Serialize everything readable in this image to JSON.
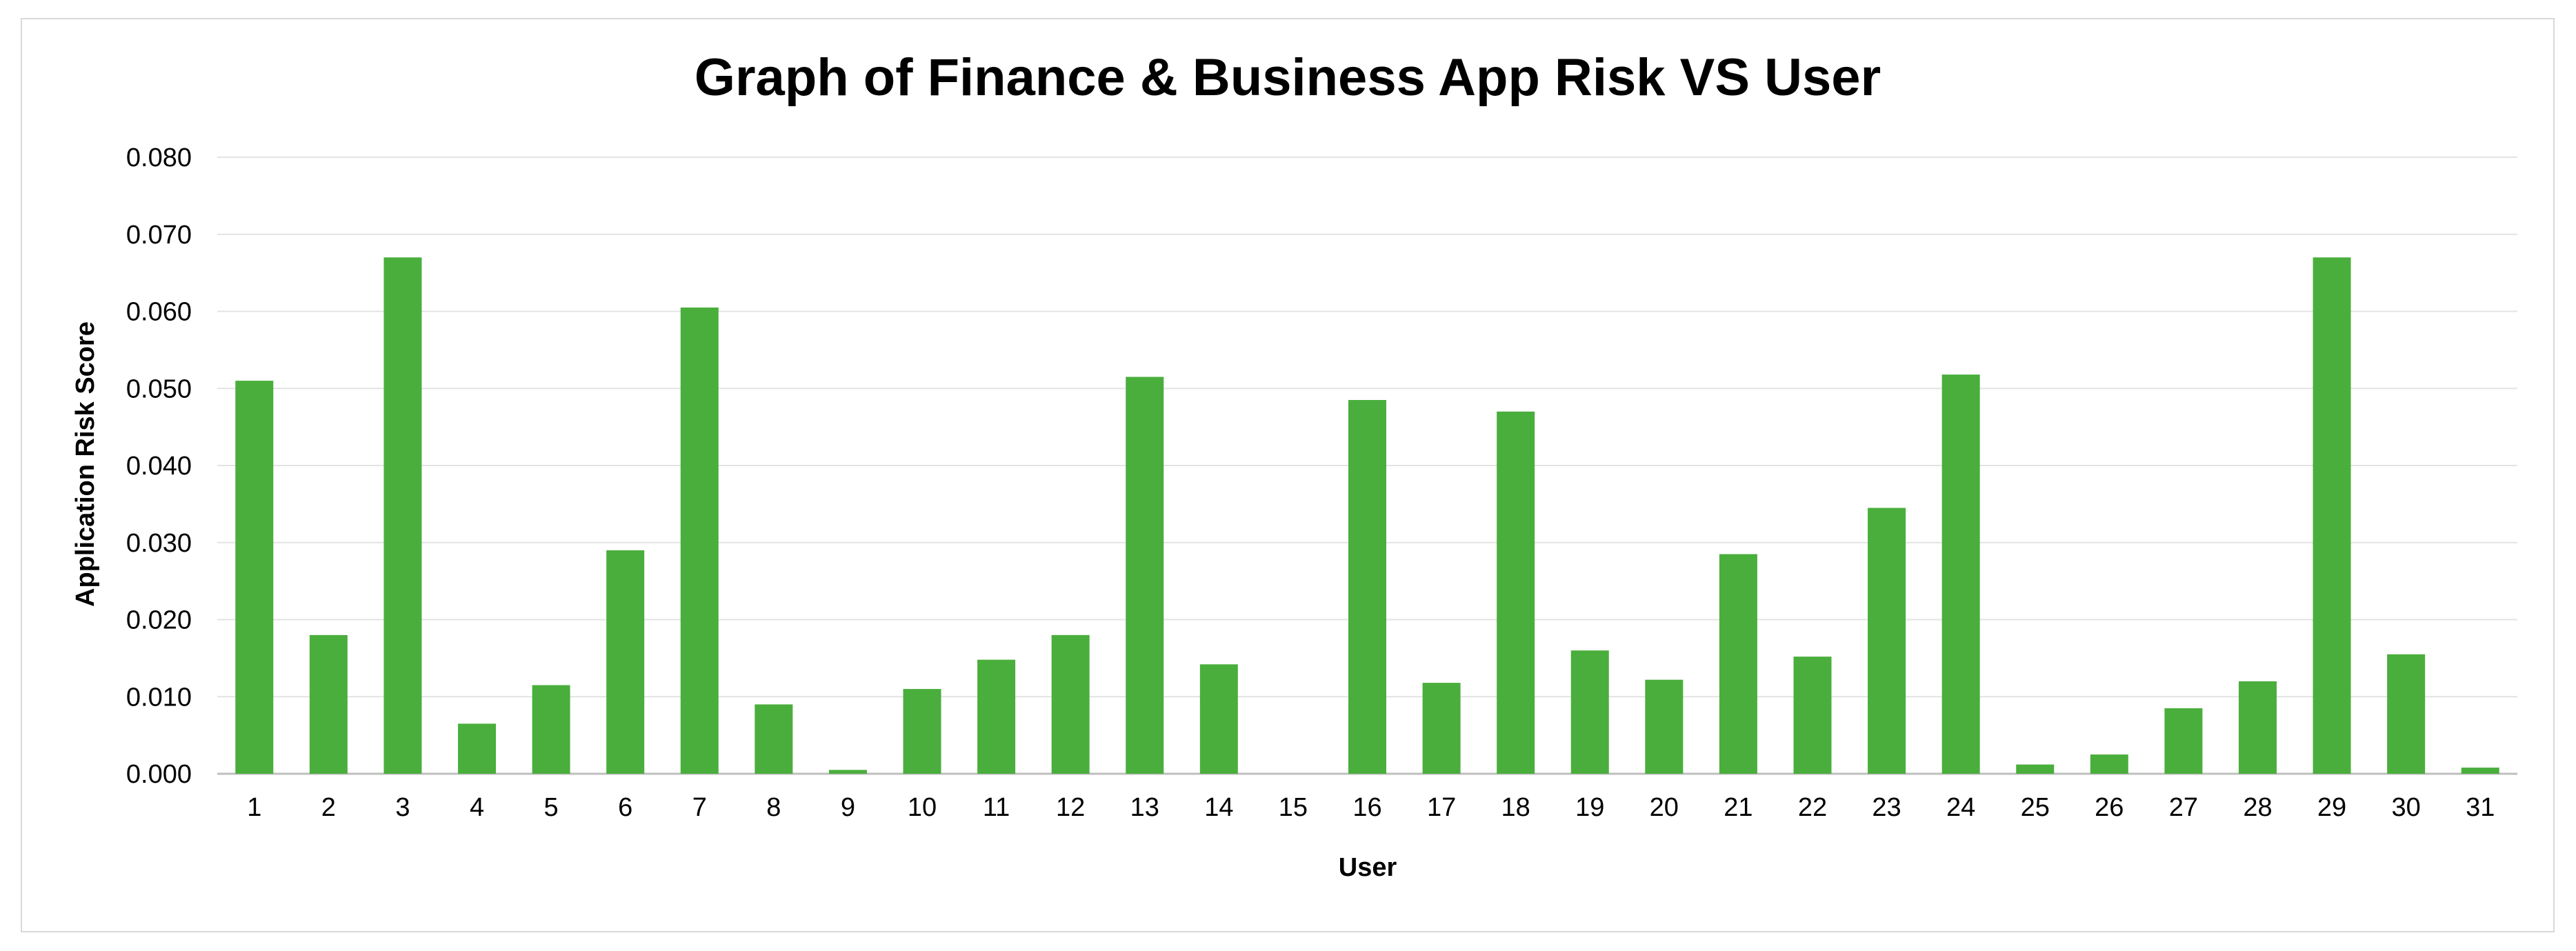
{
  "chart_data": {
    "type": "bar",
    "title": "Graph of Finance & Business App Risk VS User",
    "xlabel": "User",
    "ylabel": "Application Risk Score",
    "ylim": [
      0,
      0.08
    ],
    "yticks": [
      "0.000",
      "0.010",
      "0.020",
      "0.030",
      "0.040",
      "0.050",
      "0.060",
      "0.070",
      "0.080"
    ],
    "grid": true,
    "legend": "none",
    "bar_color": "#4aae3c",
    "categories": [
      "1",
      "2",
      "3",
      "4",
      "5",
      "6",
      "7",
      "8",
      "9",
      "10",
      "11",
      "12",
      "13",
      "14",
      "15",
      "16",
      "17",
      "18",
      "19",
      "20",
      "21",
      "22",
      "23",
      "24",
      "25",
      "26",
      "27",
      "28",
      "29",
      "30",
      "31"
    ],
    "values": [
      0.051,
      0.018,
      0.067,
      0.0065,
      0.0115,
      0.029,
      0.0605,
      0.009,
      0.0005,
      0.011,
      0.0148,
      0.018,
      0.0515,
      0.0142,
      0.0,
      0.0485,
      0.0118,
      0.047,
      0.016,
      0.0122,
      0.0285,
      0.0152,
      0.0345,
      0.0518,
      0.0012,
      0.0025,
      0.0085,
      0.012,
      0.067,
      0.0155,
      0.0008
    ]
  }
}
